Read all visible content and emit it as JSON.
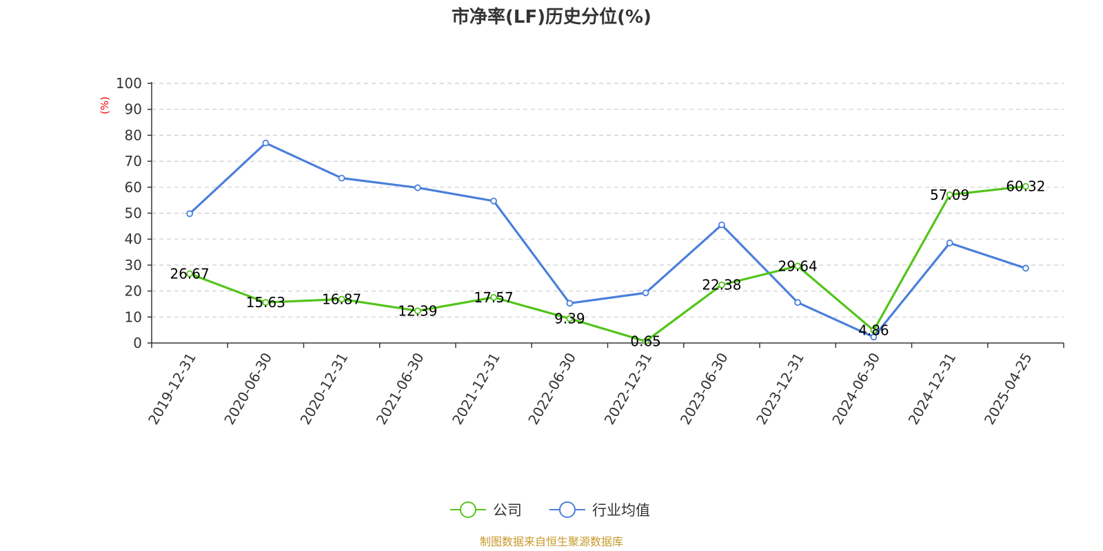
{
  "chart_data": {
    "type": "line",
    "title": "市净率(LF)历史分位(%)",
    "ylabel": "(%)",
    "xlabel": "",
    "ylim": [
      0,
      100
    ],
    "yticks": [
      0,
      10,
      20,
      30,
      40,
      50,
      60,
      70,
      80,
      90,
      100
    ],
    "grid": true,
    "legend_position": "bottom",
    "categories": [
      "2019-12-31",
      "2020-06-30",
      "2020-12-31",
      "2021-06-30",
      "2021-12-31",
      "2022-06-30",
      "2022-12-31",
      "2023-06-30",
      "2023-12-31",
      "2024-06-30",
      "2024-12-31",
      "2025-04-25"
    ],
    "series": [
      {
        "name": "公司",
        "color": "#52c41a",
        "values": [
          26.67,
          15.63,
          16.87,
          12.39,
          17.57,
          9.39,
          0.65,
          22.38,
          29.64,
          4.86,
          57.09,
          60.32
        ],
        "labels": [
          "26.67",
          "15.63",
          "16.87",
          "12.39",
          "17.57",
          "9.39",
          "0.65",
          "22.38",
          "29.64",
          "4.86",
          "57.09",
          "60.32"
        ]
      },
      {
        "name": "行业均值",
        "color": "#4a7fdb",
        "values": [
          49.8,
          77.0,
          63.5,
          59.8,
          54.7,
          15.3,
          19.3,
          45.5,
          15.6,
          2.3,
          38.5,
          28.8
        ]
      }
    ],
    "source": "制图数据来自恒生聚源数据库"
  }
}
